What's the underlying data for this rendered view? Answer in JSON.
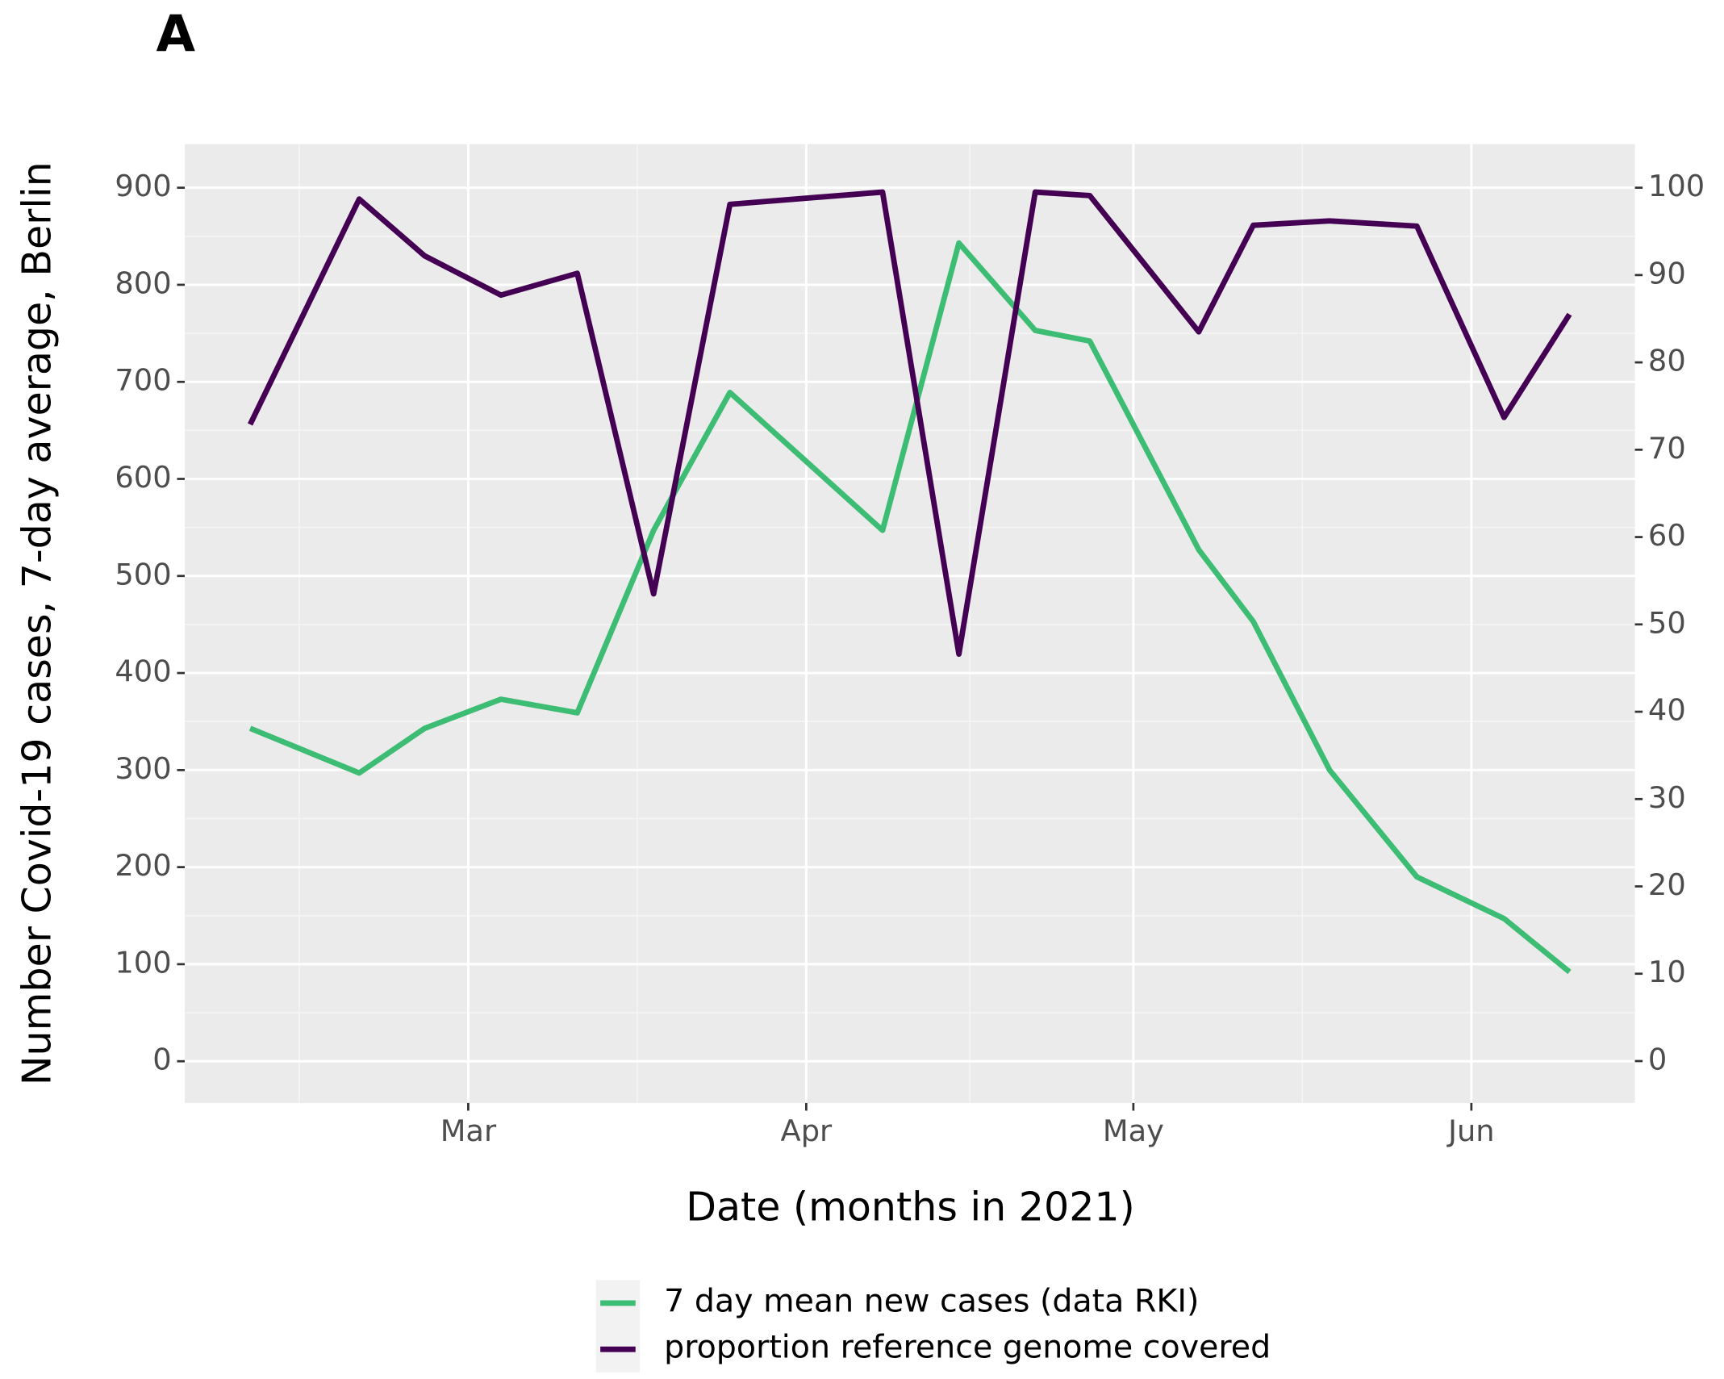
{
  "chart_data": {
    "type": "line",
    "panel_label": "A",
    "x_label": "Date (months in 2021)",
    "y_label": "Number Covid-19 cases, 7-day average, Berlin",
    "x": [
      "2021-02-09",
      "2021-02-19",
      "2021-02-25",
      "2021-03-04",
      "2021-03-11",
      "2021-03-18",
      "2021-03-25",
      "2021-04-08",
      "2021-04-15",
      "2021-04-22",
      "2021-04-27",
      "2021-05-07",
      "2021-05-12",
      "2021-05-19",
      "2021-05-27",
      "2021-06-04",
      "2021-06-10"
    ],
    "xlim": [
      "2021-02-03",
      "2021-06-16"
    ],
    "xticks": [
      {
        "value": "2021-03-01",
        "label": "Mar"
      },
      {
        "value": "2021-04-01",
        "label": "Apr"
      },
      {
        "value": "2021-05-01",
        "label": "May"
      },
      {
        "value": "2021-06-01",
        "label": "Jun"
      }
    ],
    "ylim": [
      -43,
      945
    ],
    "yticks": [
      0,
      100,
      200,
      300,
      400,
      500,
      600,
      700,
      800,
      900
    ],
    "y2lim": [
      -4.8,
      105
    ],
    "y2ticks": [
      0,
      10,
      20,
      30,
      40,
      50,
      60,
      70,
      80,
      90,
      100
    ],
    "grid": true,
    "legend": "bottom",
    "series": [
      {
        "name": "7 day mean new cases (data RKI)",
        "color": "#3dbc74",
        "values": [
          343,
          297,
          343,
          373,
          359,
          547,
          689,
          547,
          843,
          753,
          742,
          527,
          453,
          300,
          190,
          147,
          92
        ]
      },
      {
        "name": "proportion reference genome covered",
        "color": "#440154",
        "axis": "y2",
        "values": [
          72.9,
          98.7,
          92.2,
          87.7,
          90.2,
          53.5,
          98.1,
          99.5,
          46.6,
          99.5,
          99.1,
          83.5,
          95.7,
          96.2,
          95.6,
          73.7,
          85.5
        ]
      }
    ]
  }
}
